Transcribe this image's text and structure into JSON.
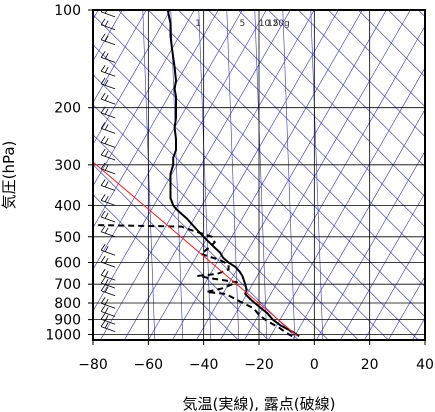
{
  "chart_data": {
    "type": "line",
    "title": "",
    "xlabel": "気温(実線), 露点(破線)",
    "ylabel": "気圧(hPa)",
    "xlim": [
      -80,
      40
    ],
    "ylim": [
      1040,
      100
    ],
    "y_scale": "log",
    "x_ticks": [
      -80,
      -60,
      -40,
      -20,
      0,
      20,
      40
    ],
    "x_tick_labels": [
      "−80",
      "−60",
      "−40",
      "−20",
      "0",
      "20",
      "40"
    ],
    "y_ticks": [
      100,
      200,
      300,
      400,
      500,
      600,
      700,
      800,
      900,
      1000
    ],
    "y_tick_labels": [
      "100",
      "200",
      "300",
      "400",
      "500",
      "600",
      "700",
      "800",
      "900",
      "1000"
    ],
    "mixing_ratio_labels": [
      "1",
      "5",
      "10",
      "15",
      "20g"
    ],
    "grid": true,
    "colors": {
      "temperature": "#000000",
      "dewpoint": "#000000",
      "parcel": "#ff2020",
      "background_lines": "#3333cc",
      "grid": "#000000"
    },
    "series": [
      {
        "name": "",
        "role": "temperature",
        "style": "solid",
        "points": [
          [
            -5.5,
            1012
          ],
          [
            -8,
            980
          ],
          [
            -12,
            940
          ],
          [
            -15,
            900
          ],
          [
            -17,
            860
          ],
          [
            -20,
            820
          ],
          [
            -23,
            780
          ],
          [
            -25,
            750
          ],
          [
            -24.5,
            730
          ],
          [
            -25,
            700
          ],
          [
            -25.5,
            680
          ],
          [
            -26,
            660
          ],
          [
            -27,
            640
          ],
          [
            -28.5,
            620
          ],
          [
            -31,
            600
          ],
          [
            -33,
            580
          ],
          [
            -34,
            560
          ],
          [
            -36,
            540
          ],
          [
            -38,
            520
          ],
          [
            -40,
            500
          ],
          [
            -42,
            480
          ],
          [
            -44,
            460
          ],
          [
            -46,
            440
          ],
          [
            -48,
            425
          ],
          [
            -50,
            410
          ],
          [
            -51,
            400
          ],
          [
            -52,
            380
          ],
          [
            -52,
            360
          ],
          [
            -52,
            340
          ],
          [
            -52,
            320
          ],
          [
            -51,
            300
          ],
          [
            -51,
            285
          ],
          [
            -50,
            270
          ],
          [
            -50,
            250
          ],
          [
            -50.5,
            230
          ],
          [
            -50,
            215
          ],
          [
            -50,
            200
          ],
          [
            -50,
            185
          ],
          [
            -50.5,
            175
          ],
          [
            -50,
            165
          ],
          [
            -50.5,
            150
          ],
          [
            -51,
            140
          ],
          [
            -51.5,
            130
          ],
          [
            -52,
            120
          ],
          [
            -52,
            110
          ],
          [
            -53,
            100
          ]
        ]
      },
      {
        "name": "",
        "role": "dewpoint",
        "style": "dashed",
        "points": [
          [
            -8,
            1012
          ],
          [
            -10,
            990
          ],
          [
            -13,
            950
          ],
          [
            -17,
            910
          ],
          [
            -20,
            870
          ],
          [
            -22,
            830
          ],
          [
            -27,
            790
          ],
          [
            -32,
            750
          ],
          [
            -39,
            740
          ],
          [
            -33,
            720
          ],
          [
            -28,
            690
          ],
          [
            -38,
            670
          ],
          [
            -42,
            660
          ],
          [
            -35,
            650
          ],
          [
            -31,
            630
          ],
          [
            -31,
            610
          ],
          [
            -34,
            590
          ],
          [
            -41,
            565
          ],
          [
            -38,
            540
          ],
          [
            -36,
            520
          ],
          [
            -37,
            500
          ],
          [
            -45,
            475
          ],
          [
            -48,
            465
          ],
          [
            -80,
            460
          ]
        ]
      },
      {
        "name": "",
        "role": "parcel",
        "style": "solid",
        "points": [
          [
            -80,
            294
          ],
          [
            -6,
            1012
          ]
        ]
      }
    ],
    "wind_barbs": {
      "x": -72,
      "pressures": [
        105,
        115,
        128,
        145,
        160,
        175,
        195,
        215,
        240,
        265,
        290,
        320,
        360,
        400,
        450,
        500,
        570,
        620,
        680,
        720,
        760,
        830,
        880,
        930,
        980
      ]
    }
  }
}
